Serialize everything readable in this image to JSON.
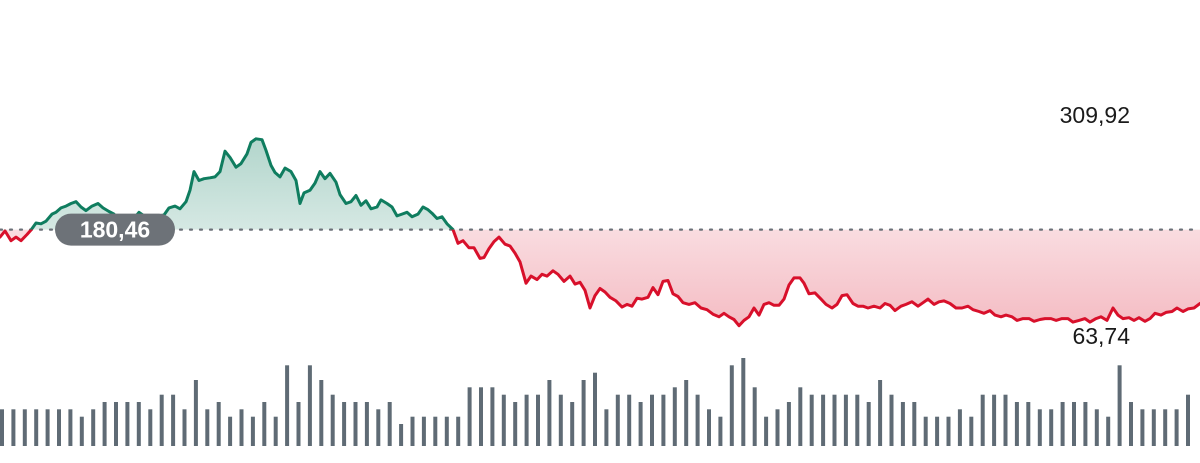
{
  "chart_data": {
    "type": "line",
    "reference_value": 180.46,
    "reference_label": "180,46",
    "max_label": "309,92",
    "min_label": "63,74",
    "y_range": [
      63.74,
      309.92
    ],
    "colors": {
      "up": "#0f7d5f",
      "down": "#d8102b",
      "volume": "#5f6b75",
      "reference_line": "#6b7178",
      "badge": "#6d7278"
    },
    "price": [
      [
        0,
        172
      ],
      [
        5,
        179
      ],
      [
        11,
        168
      ],
      [
        16,
        172
      ],
      [
        21,
        168
      ],
      [
        27,
        175
      ],
      [
        31,
        180
      ],
      [
        36,
        188
      ],
      [
        41,
        187
      ],
      [
        46,
        190
      ],
      [
        52,
        198
      ],
      [
        56,
        200
      ],
      [
        61,
        205
      ],
      [
        66,
        207
      ],
      [
        71,
        210
      ],
      [
        76,
        212
      ],
      [
        81,
        206
      ],
      [
        86,
        202
      ],
      [
        92,
        207
      ],
      [
        98,
        210
      ],
      [
        103,
        205
      ],
      [
        109,
        201
      ],
      [
        114,
        198
      ],
      [
        119,
        190
      ],
      [
        124,
        186
      ],
      [
        130,
        190
      ],
      [
        134,
        193
      ],
      [
        139,
        200
      ],
      [
        144,
        196
      ],
      [
        148,
        190
      ],
      [
        154,
        192
      ],
      [
        159,
        196
      ],
      [
        164,
        197
      ],
      [
        169,
        205
      ],
      [
        175,
        207
      ],
      [
        180,
        204
      ],
      [
        186,
        212
      ],
      [
        190,
        225
      ],
      [
        194,
        246
      ],
      [
        199,
        236
      ],
      [
        204,
        238
      ],
      [
        210,
        239
      ],
      [
        215,
        240
      ],
      [
        220,
        246
      ],
      [
        225,
        269
      ],
      [
        230,
        262
      ],
      [
        236,
        251
      ],
      [
        241,
        255
      ],
      [
        247,
        266
      ],
      [
        251,
        279
      ],
      [
        256,
        283
      ],
      [
        262,
        282
      ],
      [
        266,
        270
      ],
      [
        271,
        253
      ],
      [
        275,
        245
      ],
      [
        280,
        240
      ],
      [
        285,
        250
      ],
      [
        291,
        246
      ],
      [
        296,
        236
      ],
      [
        300,
        210
      ],
      [
        304,
        222
      ],
      [
        310,
        225
      ],
      [
        315,
        233
      ],
      [
        320,
        246
      ],
      [
        325,
        238
      ],
      [
        330,
        244
      ],
      [
        336,
        234
      ],
      [
        340,
        220
      ],
      [
        346,
        210
      ],
      [
        351,
        212
      ],
      [
        356,
        219
      ],
      [
        361,
        208
      ],
      [
        366,
        213
      ],
      [
        371,
        204
      ],
      [
        377,
        206
      ],
      [
        381,
        214
      ],
      [
        387,
        210
      ],
      [
        392,
        206
      ],
      [
        397,
        196
      ],
      [
        402,
        198
      ],
      [
        407,
        200
      ],
      [
        412,
        195
      ],
      [
        418,
        198
      ],
      [
        423,
        206
      ],
      [
        428,
        203
      ],
      [
        432,
        199
      ],
      [
        437,
        193
      ],
      [
        442,
        195
      ],
      [
        447,
        187
      ],
      [
        453,
        180.46
      ],
      [
        458,
        165
      ],
      [
        463,
        168
      ],
      [
        469,
        160
      ],
      [
        474,
        160
      ],
      [
        480,
        148
      ],
      [
        484,
        149
      ],
      [
        489,
        159
      ],
      [
        494,
        167
      ],
      [
        499,
        172
      ],
      [
        505,
        164
      ],
      [
        510,
        162
      ],
      [
        515,
        154
      ],
      [
        520,
        144
      ],
      [
        526,
        120
      ],
      [
        531,
        128
      ],
      [
        537,
        124
      ],
      [
        542,
        130
      ],
      [
        547,
        128
      ],
      [
        553,
        134
      ],
      [
        558,
        130
      ],
      [
        564,
        122
      ],
      [
        570,
        128
      ],
      [
        575,
        119
      ],
      [
        580,
        121
      ],
      [
        585,
        112
      ],
      [
        590,
        92
      ],
      [
        595,
        106
      ],
      [
        600,
        114
      ],
      [
        605,
        110
      ],
      [
        610,
        104
      ],
      [
        616,
        100
      ],
      [
        622,
        93
      ],
      [
        627,
        96
      ],
      [
        632,
        94
      ],
      [
        637,
        103
      ],
      [
        642,
        102
      ],
      [
        648,
        104
      ],
      [
        653,
        115
      ],
      [
        658,
        107
      ],
      [
        663,
        122
      ],
      [
        668,
        123
      ],
      [
        673,
        108
      ],
      [
        678,
        105
      ],
      [
        683,
        98
      ],
      [
        689,
        96
      ],
      [
        695,
        98
      ],
      [
        701,
        92
      ],
      [
        707,
        90
      ],
      [
        713,
        85
      ],
      [
        719,
        82
      ],
      [
        724,
        86
      ],
      [
        729,
        82
      ],
      [
        734,
        79
      ],
      [
        739,
        72
      ],
      [
        744,
        78
      ],
      [
        749,
        82
      ],
      [
        754,
        92
      ],
      [
        759,
        84
      ],
      [
        764,
        96
      ],
      [
        769,
        98
      ],
      [
        774,
        95
      ],
      [
        779,
        95
      ],
      [
        784,
        102
      ],
      [
        789,
        118
      ],
      [
        794,
        126
      ],
      [
        800,
        126
      ],
      [
        804,
        120
      ],
      [
        809,
        108
      ],
      [
        815,
        109
      ],
      [
        821,
        102
      ],
      [
        826,
        96
      ],
      [
        832,
        92
      ],
      [
        837,
        96
      ],
      [
        842,
        106
      ],
      [
        847,
        107
      ],
      [
        853,
        97
      ],
      [
        858,
        94
      ],
      [
        863,
        94
      ],
      [
        868,
        92
      ],
      [
        874,
        94
      ],
      [
        880,
        92
      ],
      [
        885,
        97
      ],
      [
        890,
        95
      ],
      [
        895,
        89
      ],
      [
        901,
        94
      ],
      [
        906,
        96
      ],
      [
        912,
        99
      ],
      [
        918,
        94
      ],
      [
        923,
        98
      ],
      [
        928,
        102
      ],
      [
        934,
        96
      ],
      [
        939,
        99
      ],
      [
        944,
        100
      ],
      [
        950,
        97
      ],
      [
        956,
        92
      ],
      [
        962,
        92
      ],
      [
        968,
        94
      ],
      [
        973,
        90
      ],
      [
        979,
        88
      ],
      [
        984,
        86
      ],
      [
        990,
        89
      ],
      [
        995,
        84
      ],
      [
        1001,
        82
      ],
      [
        1006,
        84
      ],
      [
        1012,
        82
      ],
      [
        1017,
        78
      ],
      [
        1023,
        80
      ],
      [
        1029,
        80
      ],
      [
        1034,
        77
      ],
      [
        1040,
        79
      ],
      [
        1045,
        80
      ],
      [
        1051,
        80
      ],
      [
        1056,
        78
      ],
      [
        1062,
        80
      ],
      [
        1068,
        80
      ],
      [
        1073,
        76
      ],
      [
        1079,
        78
      ],
      [
        1085,
        80
      ],
      [
        1090,
        76
      ],
      [
        1096,
        80
      ],
      [
        1101,
        82
      ],
      [
        1107,
        78
      ],
      [
        1113,
        92
      ],
      [
        1118,
        84
      ],
      [
        1123,
        80
      ],
      [
        1129,
        81
      ],
      [
        1134,
        78
      ],
      [
        1139,
        81
      ],
      [
        1145,
        77
      ],
      [
        1150,
        80
      ],
      [
        1155,
        86
      ],
      [
        1161,
        84
      ],
      [
        1166,
        87
      ],
      [
        1172,
        88
      ],
      [
        1177,
        92
      ],
      [
        1183,
        88
      ],
      [
        1188,
        91
      ],
      [
        1194,
        92
      ],
      [
        1200,
        97
      ]
    ],
    "volume": [
      10,
      10,
      10,
      10,
      10,
      10,
      10,
      8,
      10,
      12,
      12,
      12,
      12,
      10,
      14,
      14,
      10,
      18,
      10,
      12,
      8,
      10,
      8,
      12,
      8,
      22,
      12,
      22,
      18,
      14,
      12,
      12,
      12,
      10,
      12,
      6,
      8,
      8,
      8,
      8,
      8,
      16,
      16,
      16,
      14,
      12,
      14,
      14,
      18,
      14,
      12,
      18,
      20,
      10,
      14,
      14,
      12,
      14,
      14,
      16,
      18,
      14,
      10,
      8,
      22,
      24,
      16,
      8,
      10,
      12,
      16,
      14,
      14,
      14,
      14,
      14,
      12,
      18,
      14,
      12,
      12,
      8,
      8,
      8,
      10,
      8,
      14,
      14,
      14,
      12,
      12,
      10,
      10,
      12,
      12,
      12,
      10,
      8,
      22,
      12,
      10,
      10,
      10,
      10,
      14
    ]
  }
}
